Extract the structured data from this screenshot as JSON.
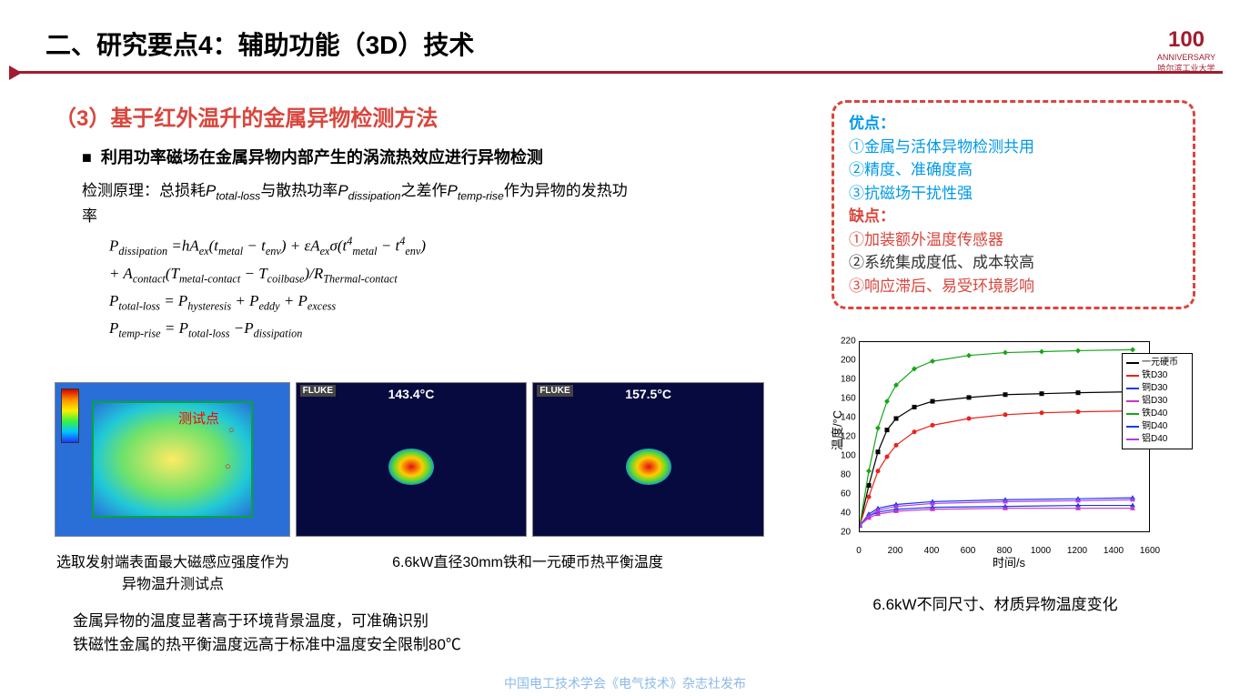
{
  "header": {
    "title": "二、研究要点4：辅助功能（3D）技术"
  },
  "logo": {
    "big": "100",
    "small": "ANNIVERSARY",
    "caption": "哈尔滨工业大学"
  },
  "section": {
    "subtitle": "（3）基于红外温升的金属异物检测方法",
    "bullet": "利用功率磁场在金属异物内部产生的涡流热效应进行异物检测",
    "theory_prefix": "检测原理：总损耗",
    "theory_mid1": "与散热功率",
    "theory_mid2": "之差作",
    "theory_suffix": "作为异物的发热功率",
    "sym_total": "P",
    "sub_total": "total-loss",
    "sym_diss": "P",
    "sub_diss": "dissipation",
    "sym_temp": "P",
    "sub_temp": "temp-rise",
    "eq1_lhs": "P",
    "eq1_lhs_sub": "dissipation",
    "eq1_rhs": " = hAₑₓ(t_metal − t_env) + εAₑₓσ(t⁴_metal − t⁴_env)",
    "eq1_line2": "+ A_contact(T_metal-contact − T_coilbase)/R_Thermal-contact",
    "eq2": "P_total-loss = P_hysteresis + P_eddy + P_excess",
    "eq3": "P_temp-rise = P_total-loss − P_dissipation"
  },
  "figures": {
    "testpoint_label": "测试点",
    "thermal1_temp": "143.4°C",
    "thermal2_temp": "157.5°C",
    "brand": "FLUKE",
    "cap1": "选取发射端表面最大磁感应强度作为异物温升测试点",
    "cap2": "6.6kW直径30mm铁和一元硬币热平衡温度"
  },
  "bottom": {
    "line1": "金属异物的温度显著高于环境背景温度，可准确识别",
    "line2": "铁磁性金属的热平衡温度远高于标准中温度安全限制80℃"
  },
  "footer": {
    "credit": "中国电工技术学会《电气技术》杂志社发布"
  },
  "pros_cons": {
    "pro_header": "优点：",
    "pro1": "①金属与活体异物检测共用",
    "pro2": "②精度、准确度高",
    "pro3": "③抗磁场干扰性强",
    "con_header": "缺点：",
    "con1": "①加装额外温度传感器",
    "con2": "②系统集成度低、成本较高",
    "con3": "③响应滞后、易受环境影响"
  },
  "chart": {
    "caption": "6.6kW不同尺寸、材质异物温度变化",
    "ylabel": "温度/°C",
    "xlabel": "时间/s",
    "ylim": [
      20,
      220
    ],
    "ytick_step": 20,
    "xlim": [
      0,
      1600
    ],
    "xtick_step": 200,
    "series": [
      {
        "name": "一元硬币",
        "color": "#000000",
        "marker": "square",
        "data": [
          [
            0,
            28
          ],
          [
            50,
            70
          ],
          [
            100,
            105
          ],
          [
            150,
            128
          ],
          [
            200,
            140
          ],
          [
            300,
            152
          ],
          [
            400,
            158
          ],
          [
            600,
            162
          ],
          [
            800,
            165
          ],
          [
            1000,
            166
          ],
          [
            1200,
            167
          ],
          [
            1500,
            168
          ]
        ]
      },
      {
        "name": "铁D30",
        "color": "#e8231b",
        "marker": "circle",
        "data": [
          [
            0,
            28
          ],
          [
            50,
            58
          ],
          [
            100,
            85
          ],
          [
            150,
            100
          ],
          [
            200,
            112
          ],
          [
            300,
            126
          ],
          [
            400,
            133
          ],
          [
            600,
            140
          ],
          [
            800,
            144
          ],
          [
            1000,
            146
          ],
          [
            1200,
            147
          ],
          [
            1500,
            148
          ]
        ]
      },
      {
        "name": "铜D30",
        "color": "#1b3be8",
        "marker": "triangle",
        "data": [
          [
            0,
            28
          ],
          [
            50,
            38
          ],
          [
            100,
            42
          ],
          [
            200,
            45
          ],
          [
            400,
            47
          ],
          [
            800,
            48
          ],
          [
            1200,
            49
          ],
          [
            1500,
            49
          ]
        ]
      },
      {
        "name": "铝D30",
        "color": "#c336c8",
        "marker": "triangle",
        "data": [
          [
            0,
            28
          ],
          [
            50,
            36
          ],
          [
            100,
            40
          ],
          [
            200,
            43
          ],
          [
            400,
            45
          ],
          [
            800,
            46
          ],
          [
            1200,
            46
          ],
          [
            1500,
            46
          ]
        ]
      },
      {
        "name": "铁D40",
        "color": "#18a518",
        "marker": "diamond",
        "data": [
          [
            0,
            28
          ],
          [
            50,
            85
          ],
          [
            100,
            130
          ],
          [
            150,
            158
          ],
          [
            200,
            175
          ],
          [
            300,
            192
          ],
          [
            400,
            200
          ],
          [
            600,
            206
          ],
          [
            800,
            209
          ],
          [
            1000,
            210
          ],
          [
            1200,
            211
          ],
          [
            1500,
            212
          ]
        ]
      },
      {
        "name": "铜D40",
        "color": "#1b3be8",
        "marker": "triangle",
        "data": [
          [
            0,
            28
          ],
          [
            50,
            40
          ],
          [
            100,
            46
          ],
          [
            200,
            50
          ],
          [
            400,
            53
          ],
          [
            800,
            55
          ],
          [
            1200,
            56
          ],
          [
            1500,
            57
          ]
        ]
      },
      {
        "name": "铝D40",
        "color": "#b43be8",
        "marker": "triangle",
        "data": [
          [
            0,
            28
          ],
          [
            50,
            38
          ],
          [
            100,
            44
          ],
          [
            200,
            48
          ],
          [
            400,
            51
          ],
          [
            800,
            53
          ],
          [
            1200,
            54
          ],
          [
            1500,
            55
          ]
        ]
      }
    ]
  }
}
